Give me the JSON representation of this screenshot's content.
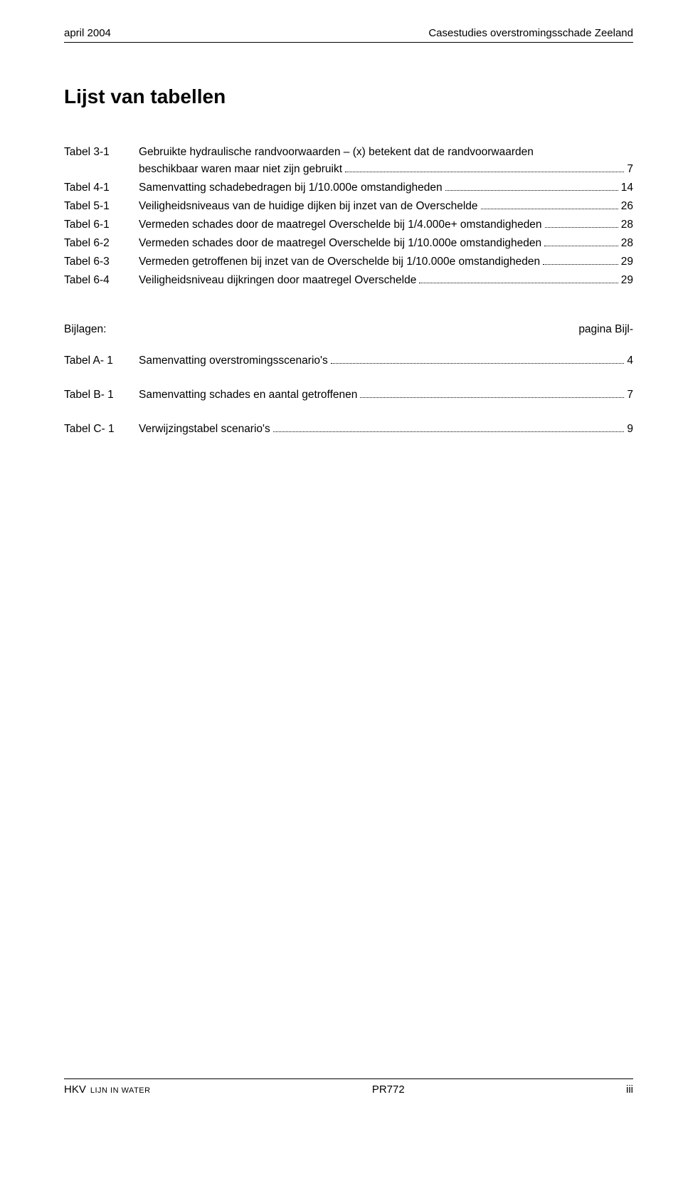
{
  "header": {
    "left": "april 2004",
    "right": "Casestudies overstromingsschade Zeeland"
  },
  "title": "Lijst van tabellen",
  "main_entries": [
    {
      "label": "Tabel 3-1",
      "lines": [
        {
          "text": "Gebruikte hydraulische randvoorwaarden – (x) betekent dat de randvoorwaarden",
          "leader": false
        },
        {
          "text": "beschikbaar waren maar niet zijn gebruikt",
          "leader": true,
          "page": "7"
        }
      ]
    },
    {
      "label": "Tabel 4-1",
      "lines": [
        {
          "text": "Samenvatting schadebedragen bij 1/10.000e omstandigheden",
          "leader": true,
          "page": "14"
        }
      ]
    },
    {
      "label": "Tabel 5-1",
      "lines": [
        {
          "text": "Veiligheidsniveaus van de huidige dijken bij inzet van de Overschelde",
          "leader": true,
          "page": "26"
        }
      ]
    },
    {
      "label": "Tabel 6-1",
      "lines": [
        {
          "text": "Vermeden schades door de maatregel Overschelde bij 1/4.000e+ omstandigheden",
          "leader": true,
          "page": "28"
        }
      ]
    },
    {
      "label": "Tabel 6-2",
      "lines": [
        {
          "text": "Vermeden schades door de maatregel Overschelde bij 1/10.000e omstandigheden",
          "leader": true,
          "page": "28"
        }
      ]
    },
    {
      "label": "Tabel 6-3",
      "lines": [
        {
          "text": "Vermeden getroffenen bij inzet van de Overschelde bij 1/10.000e omstandigheden",
          "leader": true,
          "page": "29"
        }
      ]
    },
    {
      "label": "Tabel 6-4",
      "lines": [
        {
          "text": "Veiligheidsniveau dijkringen door maatregel Overschelde",
          "leader": true,
          "page": "29"
        }
      ]
    }
  ],
  "appendix": {
    "header_left": "Bijlagen:",
    "header_right": "pagina Bijl-",
    "entries": [
      {
        "label": "Tabel A- 1",
        "text": "Samenvatting overstromingsscenario's",
        "page": "4"
      },
      {
        "label": "Tabel B- 1",
        "text": "Samenvatting schades en aantal getroffenen",
        "page": "7"
      },
      {
        "label": "Tabel C- 1",
        "text": "Verwijzingstabel scenario's",
        "page": "9"
      }
    ]
  },
  "footer": {
    "left_main": "HKV",
    "left_small": "LIJN IN WATER",
    "center": "PR772",
    "right": "iii"
  }
}
